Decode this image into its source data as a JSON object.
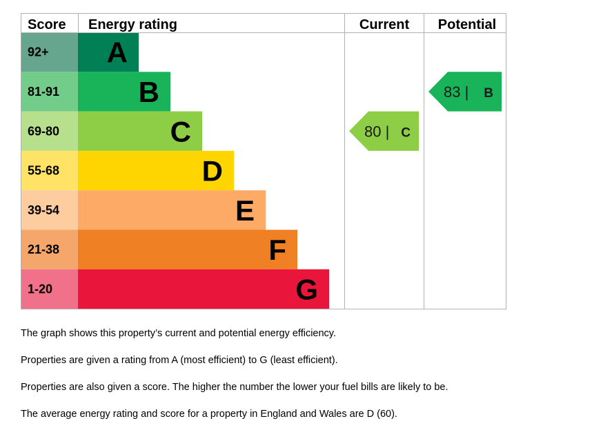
{
  "chart_data": {
    "type": "bar",
    "headers": {
      "score": "Score",
      "rating": "Energy rating",
      "current": "Current",
      "potential": "Potential"
    },
    "bands": [
      {
        "score": "92+",
        "letter": "A",
        "color": "#008054",
        "score_bg": "#66a68e"
      },
      {
        "score": "81-91",
        "letter": "B",
        "color": "#19b459",
        "score_bg": "#72cd8b"
      },
      {
        "score": "69-80",
        "letter": "C",
        "color": "#8dce46",
        "score_bg": "#b7e08c"
      },
      {
        "score": "55-68",
        "letter": "D",
        "color": "#ffd500",
        "score_bg": "#ffe366"
      },
      {
        "score": "39-54",
        "letter": "E",
        "color": "#fcaa65",
        "score_bg": "#fdcc9f"
      },
      {
        "score": "21-38",
        "letter": "F",
        "color": "#ef8023",
        "score_bg": "#f4a66b"
      },
      {
        "score": "1-20",
        "letter": "G",
        "color": "#e9153b",
        "score_bg": "#f07189"
      }
    ],
    "current": {
      "value": 80,
      "letter": "C",
      "label": "80 |",
      "color": "#8dce46"
    },
    "potential": {
      "value": 83,
      "letter": "B",
      "label": "83 |",
      "color": "#19b459"
    }
  },
  "notes": [
    "The graph shows this property’s current and potential energy efficiency.",
    "Properties are given a rating from A (most efficient) to G (least efficient).",
    "Properties are also given a score. The higher the number the lower your fuel bills are likely to be.",
    "The average energy rating and score for a property in England and Wales are D (60)."
  ]
}
